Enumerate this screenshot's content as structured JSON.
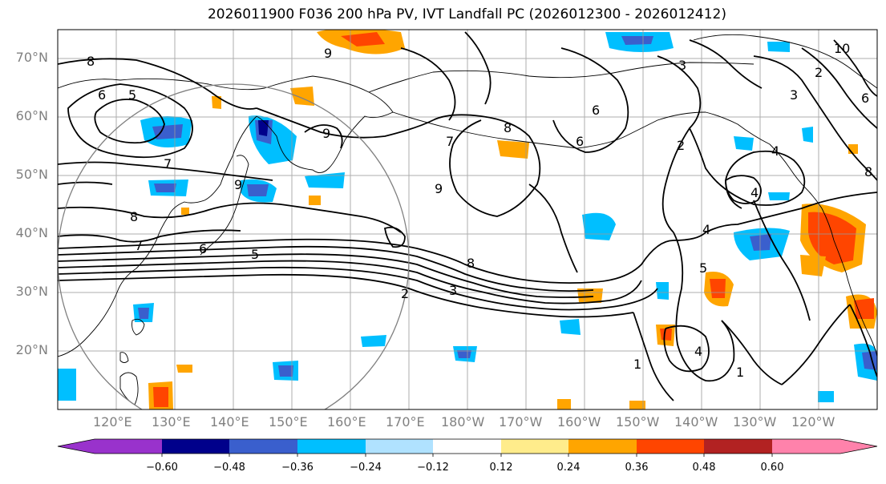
{
  "title": "2026011900 F036 200 hPa PV, IVT Landfall PC (2026012300 - 2026012412)",
  "map": {
    "projection": "PlateCarree",
    "lon_range": [
      110,
      250
    ],
    "lat_range": [
      10,
      75
    ],
    "gridlines": true,
    "coastlines": true,
    "lat_ticks": [
      "70°N",
      "60°N",
      "50°N",
      "40°N",
      "30°N",
      "20°N"
    ],
    "lon_ticks": [
      "120°E",
      "130°E",
      "140°E",
      "150°E",
      "160°E",
      "170°E",
      "180°W",
      "170°W",
      "160°W",
      "150°W",
      "140°W",
      "130°W",
      "120°W"
    ],
    "pv_contour_labels": [
      "8",
      "6",
      "5",
      "7",
      "8",
      "9",
      "7",
      "6",
      "5",
      "9",
      "8",
      "7",
      "9",
      "8",
      "6",
      "3",
      "2",
      "3",
      "6",
      "2",
      "4",
      "4",
      "5",
      "4",
      "1",
      "1",
      "2",
      "3",
      "8",
      "9",
      "10",
      "6",
      "4"
    ],
    "circle": {
      "center_lon": 140,
      "center_lat": 35,
      "radius_deg": 30,
      "color": "#808080"
    }
  },
  "colorbar": {
    "extend": "both",
    "boundaries": [
      -0.72,
      -0.6,
      -0.48,
      -0.36,
      -0.24,
      -0.12,
      0.12,
      0.24,
      0.36,
      0.48,
      0.6,
      0.72
    ],
    "colors": [
      "#9932cc",
      "#00008b",
      "#3a5fcd",
      "#00bfff",
      "#b0e2ff",
      "#ffffff",
      "#ffec8b",
      "#ffa500",
      "#ff4500",
      "#b22222",
      "#ff82ab"
    ],
    "tick_labels": [
      "−0.60",
      "−0.48",
      "−0.36",
      "−0.24",
      "−0.12",
      "0.12",
      "0.24",
      "0.36",
      "0.48",
      "0.60"
    ]
  }
}
